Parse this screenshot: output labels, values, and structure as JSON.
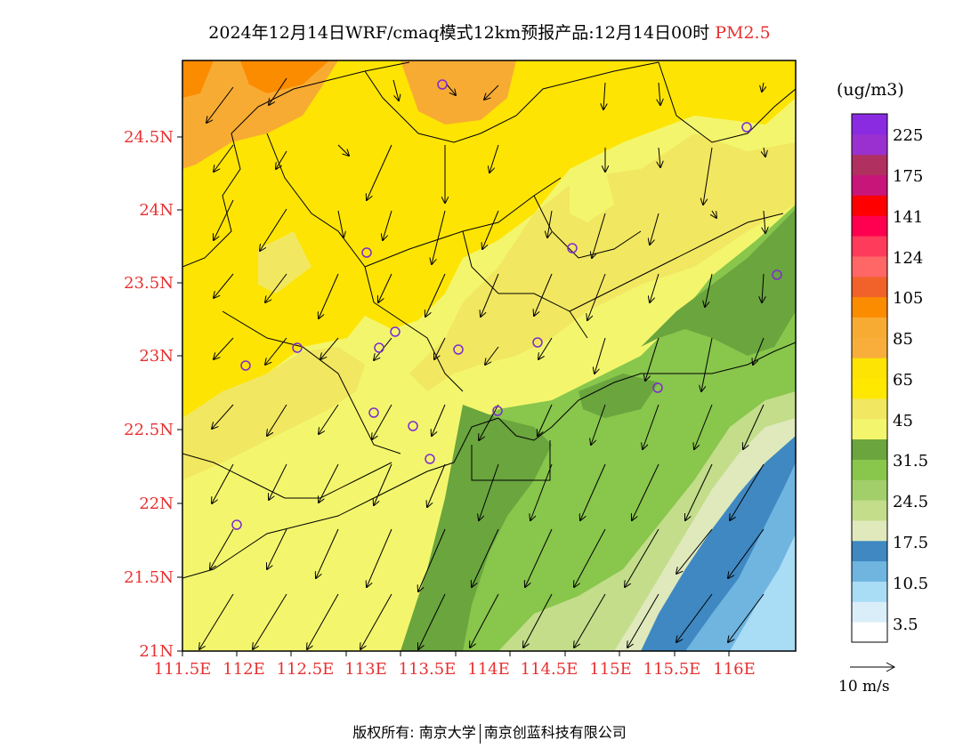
{
  "title": {
    "text": "2024年12月14日WRF/cmaq模式12km预报产品:12月14日00时",
    "pollutant": "PM2.5"
  },
  "legend": {
    "unit": "(ug/m3)",
    "labels": [
      "225",
      "175",
      "141",
      "124",
      "105",
      "85",
      "65",
      "45",
      "31.5",
      "24.5",
      "17.5",
      "10.5",
      "3.5"
    ],
    "colors": [
      "#ffffff",
      "#daeef9",
      "#a9dcf5",
      "#6fb5e0",
      "#3f88c2",
      "#dfe9bc",
      "#c3dd8a",
      "#a2cf6a",
      "#88c64c",
      "#6aa53e",
      "#f3f66c",
      "#f2e760",
      "#ffe800",
      "#fde403",
      "#f9ae3c",
      "#f8ab33",
      "#fb8c00",
      "#f1612a",
      "#ff6666",
      "#ff3b5c",
      "#ff0050",
      "#ff0000",
      "#c8157a",
      "#b03060",
      "#9b30d0",
      "#8a2be2"
    ]
  },
  "wind_reference": {
    "label": "10 m/s"
  },
  "axes": {
    "x_labels": [
      "111.5E",
      "112E",
      "112.5E",
      "113E",
      "113.5E",
      "114E",
      "114.5E",
      "115E",
      "115.5E",
      "116E"
    ],
    "y_labels": [
      "24.5N",
      "24N",
      "23.5N",
      "23N",
      "22.5N",
      "22N",
      "21.5N",
      "21N"
    ]
  },
  "footer": {
    "left": "版权所有: 南京大学",
    "right": "南京创蓝科技有限公司"
  },
  "colors": {
    "tick": "#e83030",
    "ocean_light": "#a9dcf5",
    "ocean_mid": "#6fb5e0",
    "ocean_dark": "#3f88c2"
  }
}
